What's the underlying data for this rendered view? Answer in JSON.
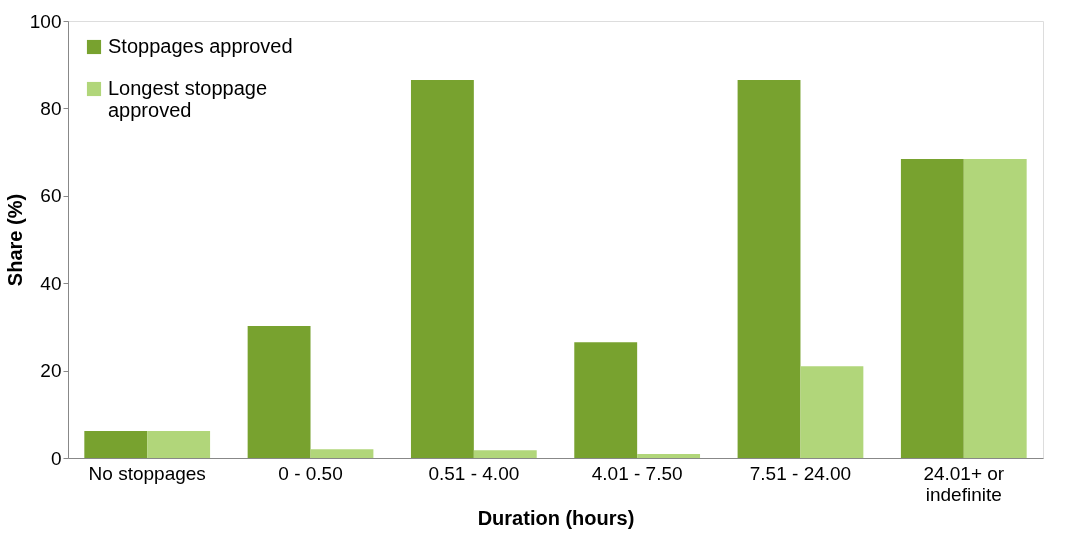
{
  "chart_data": {
    "type": "bar",
    "xlabel": "Duration (hours)",
    "ylabel": "Share (%)",
    "categories": [
      "No stoppages",
      "0 - 0.50",
      "0.51 - 4.00",
      "4.01 - 7.50",
      "7.51 - 24.00",
      "24.01+ or indefinite"
    ],
    "series": [
      {
        "name": "Stoppages approved",
        "color": "#78a22f",
        "values": [
          6.2,
          30.2,
          86.5,
          26.5,
          86.5,
          68.4
        ]
      },
      {
        "name": "Longest stoppage approved",
        "color": "#b1d67a",
        "values": [
          6.2,
          2,
          1.8,
          0.9,
          21,
          68.4
        ]
      }
    ],
    "ylim": [
      0,
      100
    ],
    "yticks": [
      0,
      20,
      40,
      60,
      80,
      100
    ],
    "grid": false,
    "legend": "top left"
  }
}
